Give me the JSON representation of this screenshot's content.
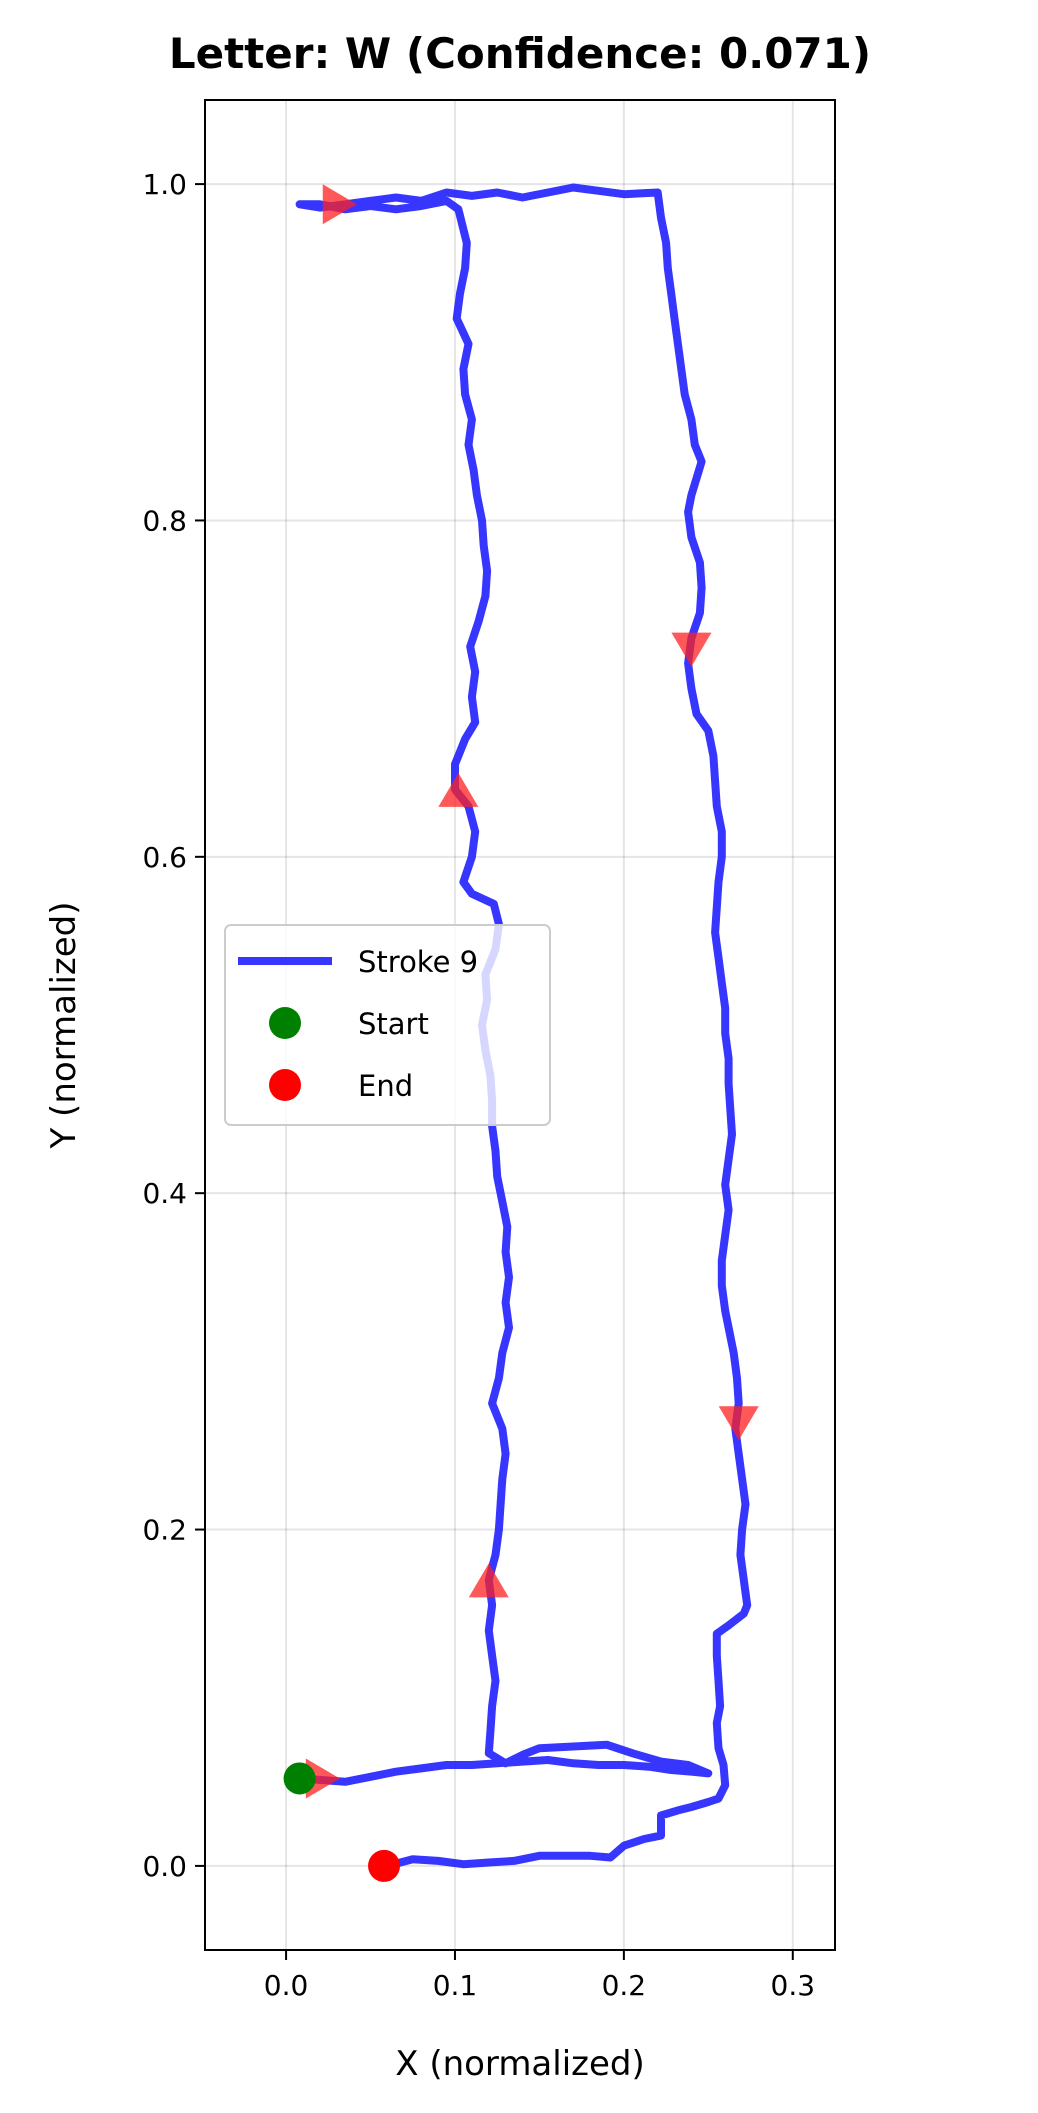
{
  "chart_data": {
    "type": "line",
    "title": "Letter: W (Confidence: 0.071)",
    "xlabel": "X (normalized)",
    "ylabel": "Y (normalized)",
    "xlim": [
      -0.048,
      0.325
    ],
    "ylim": [
      -0.05,
      1.05
    ],
    "xticks": [
      0.0,
      0.1,
      0.2,
      0.3
    ],
    "xtick_labels": [
      "0.0",
      "0.1",
      "0.2",
      "0.3"
    ],
    "yticks": [
      0.0,
      0.2,
      0.4,
      0.6,
      0.8,
      1.0
    ],
    "ytick_labels": [
      "0.0",
      "0.2",
      "0.4",
      "0.6",
      "0.8",
      "1.0"
    ],
    "grid": true,
    "legend_position": "center-left",
    "colors": {
      "stroke": "#2020ff",
      "start": "#008000",
      "end": "#ff0000",
      "arrow": "#ff2020"
    },
    "series": [
      {
        "name": "Stroke 9",
        "points": [
          [
            0.008,
            0.052
          ],
          [
            0.022,
            0.051
          ],
          [
            0.035,
            0.05
          ],
          [
            0.05,
            0.053
          ],
          [
            0.065,
            0.056
          ],
          [
            0.08,
            0.058
          ],
          [
            0.095,
            0.06
          ],
          [
            0.11,
            0.06
          ],
          [
            0.125,
            0.061
          ],
          [
            0.14,
            0.062
          ],
          [
            0.155,
            0.063
          ],
          [
            0.17,
            0.061
          ],
          [
            0.185,
            0.06
          ],
          [
            0.2,
            0.06
          ],
          [
            0.215,
            0.059
          ],
          [
            0.228,
            0.057
          ],
          [
            0.24,
            0.056
          ],
          [
            0.25,
            0.055
          ],
          [
            0.25,
            0.055
          ],
          [
            0.238,
            0.06
          ],
          [
            0.222,
            0.062
          ],
          [
            0.205,
            0.067
          ],
          [
            0.19,
            0.072
          ],
          [
            0.17,
            0.071
          ],
          [
            0.15,
            0.07
          ],
          [
            0.14,
            0.066
          ],
          [
            0.13,
            0.061
          ],
          [
            0.12,
            0.067
          ],
          [
            0.121,
            0.08
          ],
          [
            0.122,
            0.095
          ],
          [
            0.124,
            0.11
          ],
          [
            0.122,
            0.125
          ],
          [
            0.12,
            0.14
          ],
          [
            0.122,
            0.155
          ],
          [
            0.12,
            0.17
          ],
          [
            0.124,
            0.185
          ],
          [
            0.126,
            0.2
          ],
          [
            0.127,
            0.215
          ],
          [
            0.128,
            0.23
          ],
          [
            0.13,
            0.245
          ],
          [
            0.128,
            0.26
          ],
          [
            0.122,
            0.275
          ],
          [
            0.126,
            0.29
          ],
          [
            0.128,
            0.305
          ],
          [
            0.132,
            0.32
          ],
          [
            0.13,
            0.335
          ],
          [
            0.132,
            0.35
          ],
          [
            0.13,
            0.365
          ],
          [
            0.131,
            0.38
          ],
          [
            0.128,
            0.395
          ],
          [
            0.125,
            0.41
          ],
          [
            0.124,
            0.425
          ],
          [
            0.122,
            0.44
          ],
          [
            0.122,
            0.455
          ],
          [
            0.121,
            0.47
          ],
          [
            0.118,
            0.485
          ],
          [
            0.116,
            0.5
          ],
          [
            0.119,
            0.515
          ],
          [
            0.118,
            0.53
          ],
          [
            0.124,
            0.545
          ],
          [
            0.126,
            0.56
          ],
          [
            0.123,
            0.572
          ],
          [
            0.11,
            0.578
          ],
          [
            0.105,
            0.585
          ],
          [
            0.11,
            0.6
          ],
          [
            0.112,
            0.615
          ],
          [
            0.108,
            0.63
          ],
          [
            0.1,
            0.64
          ],
          [
            0.1,
            0.655
          ],
          [
            0.106,
            0.67
          ],
          [
            0.112,
            0.68
          ],
          [
            0.11,
            0.695
          ],
          [
            0.112,
            0.71
          ],
          [
            0.109,
            0.725
          ],
          [
            0.114,
            0.74
          ],
          [
            0.118,
            0.755
          ],
          [
            0.119,
            0.77
          ],
          [
            0.117,
            0.785
          ],
          [
            0.116,
            0.8
          ],
          [
            0.113,
            0.815
          ],
          [
            0.111,
            0.83
          ],
          [
            0.108,
            0.845
          ],
          [
            0.11,
            0.86
          ],
          [
            0.106,
            0.875
          ],
          [
            0.105,
            0.89
          ],
          [
            0.108,
            0.905
          ],
          [
            0.101,
            0.92
          ],
          [
            0.103,
            0.935
          ],
          [
            0.106,
            0.95
          ],
          [
            0.107,
            0.965
          ],
          [
            0.102,
            0.985
          ],
          [
            0.095,
            0.99
          ],
          [
            0.08,
            0.987
          ],
          [
            0.065,
            0.985
          ],
          [
            0.05,
            0.987
          ],
          [
            0.035,
            0.985
          ],
          [
            0.02,
            0.988
          ],
          [
            0.008,
            0.988
          ],
          [
            0.02,
            0.986
          ],
          [
            0.035,
            0.988
          ],
          [
            0.05,
            0.99
          ],
          [
            0.065,
            0.992
          ],
          [
            0.08,
            0.99
          ],
          [
            0.095,
            0.995
          ],
          [
            0.11,
            0.993
          ],
          [
            0.125,
            0.995
          ],
          [
            0.14,
            0.992
          ],
          [
            0.155,
            0.995
          ],
          [
            0.17,
            0.998
          ],
          [
            0.185,
            0.996
          ],
          [
            0.2,
            0.994
          ],
          [
            0.22,
            0.995
          ],
          [
            0.222,
            0.98
          ],
          [
            0.225,
            0.965
          ],
          [
            0.226,
            0.95
          ],
          [
            0.228,
            0.935
          ],
          [
            0.23,
            0.92
          ],
          [
            0.232,
            0.905
          ],
          [
            0.234,
            0.89
          ],
          [
            0.236,
            0.875
          ],
          [
            0.24,
            0.86
          ],
          [
            0.242,
            0.845
          ],
          [
            0.246,
            0.835
          ],
          [
            0.24,
            0.815
          ],
          [
            0.238,
            0.805
          ],
          [
            0.24,
            0.79
          ],
          [
            0.245,
            0.775
          ],
          [
            0.246,
            0.76
          ],
          [
            0.245,
            0.745
          ],
          [
            0.24,
            0.73
          ],
          [
            0.238,
            0.715
          ],
          [
            0.24,
            0.7
          ],
          [
            0.243,
            0.685
          ],
          [
            0.25,
            0.675
          ],
          [
            0.253,
            0.66
          ],
          [
            0.254,
            0.645
          ],
          [
            0.255,
            0.63
          ],
          [
            0.258,
            0.615
          ],
          [
            0.258,
            0.6
          ],
          [
            0.256,
            0.585
          ],
          [
            0.255,
            0.57
          ],
          [
            0.254,
            0.555
          ],
          [
            0.256,
            0.54
          ],
          [
            0.258,
            0.525
          ],
          [
            0.26,
            0.51
          ],
          [
            0.26,
            0.495
          ],
          [
            0.262,
            0.48
          ],
          [
            0.262,
            0.465
          ],
          [
            0.263,
            0.45
          ],
          [
            0.264,
            0.435
          ],
          [
            0.262,
            0.42
          ],
          [
            0.26,
            0.405
          ],
          [
            0.262,
            0.39
          ],
          [
            0.26,
            0.375
          ],
          [
            0.258,
            0.36
          ],
          [
            0.258,
            0.345
          ],
          [
            0.26,
            0.33
          ],
          [
            0.262,
            0.32
          ],
          [
            0.265,
            0.305
          ],
          [
            0.267,
            0.29
          ],
          [
            0.268,
            0.275
          ],
          [
            0.266,
            0.26
          ],
          [
            0.268,
            0.245
          ],
          [
            0.27,
            0.23
          ],
          [
            0.272,
            0.215
          ],
          [
            0.27,
            0.2
          ],
          [
            0.269,
            0.185
          ],
          [
            0.271,
            0.17
          ],
          [
            0.273,
            0.155
          ],
          [
            0.271,
            0.15
          ],
          [
            0.262,
            0.143
          ],
          [
            0.255,
            0.138
          ],
          [
            0.255,
            0.125
          ],
          [
            0.256,
            0.11
          ],
          [
            0.257,
            0.095
          ],
          [
            0.255,
            0.085
          ],
          [
            0.256,
            0.07
          ],
          [
            0.259,
            0.06
          ],
          [
            0.26,
            0.048
          ],
          [
            0.256,
            0.04
          ],
          [
            0.25,
            0.038
          ],
          [
            0.24,
            0.035
          ],
          [
            0.232,
            0.033
          ],
          [
            0.222,
            0.03
          ],
          [
            0.222,
            0.018
          ],
          [
            0.212,
            0.016
          ],
          [
            0.2,
            0.012
          ],
          [
            0.192,
            0.005
          ],
          [
            0.18,
            0.006
          ],
          [
            0.165,
            0.006
          ],
          [
            0.15,
            0.006
          ],
          [
            0.135,
            0.003
          ],
          [
            0.12,
            0.002
          ],
          [
            0.105,
            0.001
          ],
          [
            0.09,
            0.003
          ],
          [
            0.075,
            0.004
          ],
          [
            0.06,
            0.0
          ]
        ]
      }
    ],
    "start": [
      0.008,
      0.052
    ],
    "end": [
      0.058,
      0.0
    ],
    "direction_markers": [
      {
        "x": 0.03,
        "y": 0.988,
        "dir": "right"
      },
      {
        "x": 0.102,
        "y": 0.638,
        "dir": "up"
      },
      {
        "x": 0.12,
        "y": 0.168,
        "dir": "up"
      },
      {
        "x": 0.24,
        "y": 0.725,
        "dir": "down"
      },
      {
        "x": 0.268,
        "y": 0.265,
        "dir": "down"
      },
      {
        "x": 0.02,
        "y": 0.052,
        "dir": "right"
      }
    ],
    "legend": [
      {
        "label": "Stroke 9",
        "kind": "line"
      },
      {
        "label": "Start",
        "kind": "start-marker"
      },
      {
        "label": "End",
        "kind": "end-marker"
      }
    ]
  }
}
